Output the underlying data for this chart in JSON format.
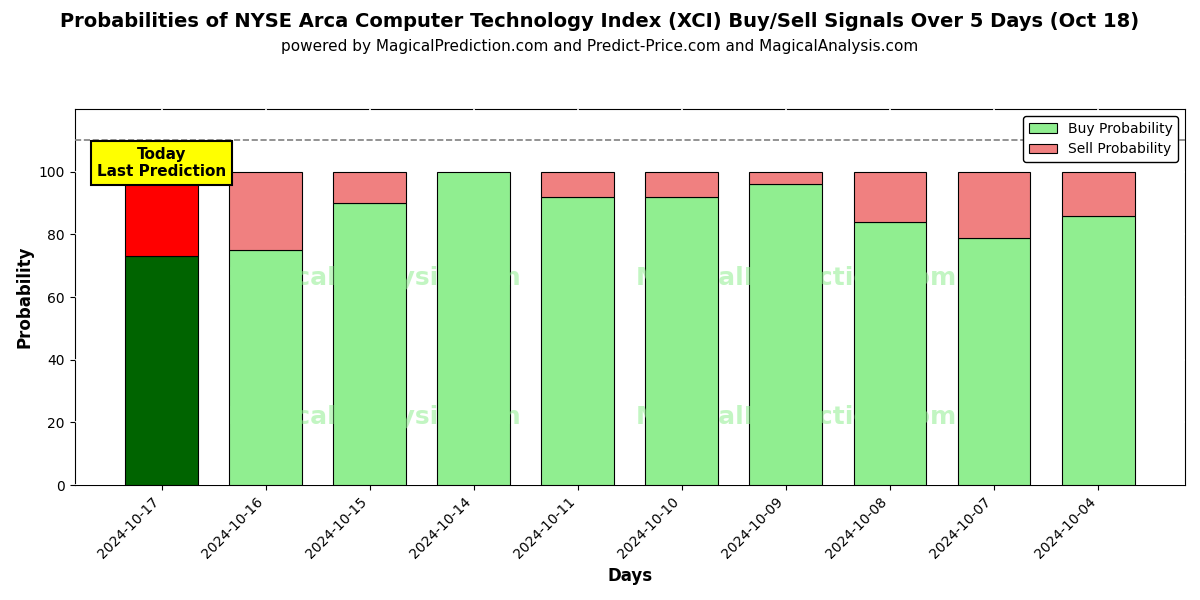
{
  "title": "Probabilities of NYSE Arca Computer Technology Index (XCI) Buy/Sell Signals Over 5 Days (Oct 18)",
  "subtitle": "powered by MagicalPrediction.com and Predict-Price.com and MagicalAnalysis.com",
  "xlabel": "Days",
  "ylabel": "Probability",
  "dates": [
    "2024-10-17",
    "2024-10-16",
    "2024-10-15",
    "2024-10-14",
    "2024-10-11",
    "2024-10-10",
    "2024-10-09",
    "2024-10-08",
    "2024-10-07",
    "2024-10-04"
  ],
  "buy_probs": [
    73,
    75,
    90,
    100,
    92,
    92,
    96,
    84,
    79,
    86
  ],
  "sell_probs": [
    27,
    25,
    10,
    0,
    8,
    8,
    4,
    16,
    21,
    14
  ],
  "today_buy_color": "#006400",
  "today_sell_color": "#FF0000",
  "buy_color": "#90EE90",
  "sell_color": "#F08080",
  "today_annotation_bg": "#FFFF00",
  "today_annotation_text": "Today\nLast Prediction",
  "dashed_line_y": 110,
  "ylim": [
    0,
    120
  ],
  "yticks": [
    0,
    20,
    40,
    60,
    80,
    100
  ],
  "background_color": "#FFFFFF",
  "bar_width": 0.7,
  "title_fontsize": 14,
  "subtitle_fontsize": 11,
  "axis_label_fontsize": 12,
  "tick_fontsize": 10
}
